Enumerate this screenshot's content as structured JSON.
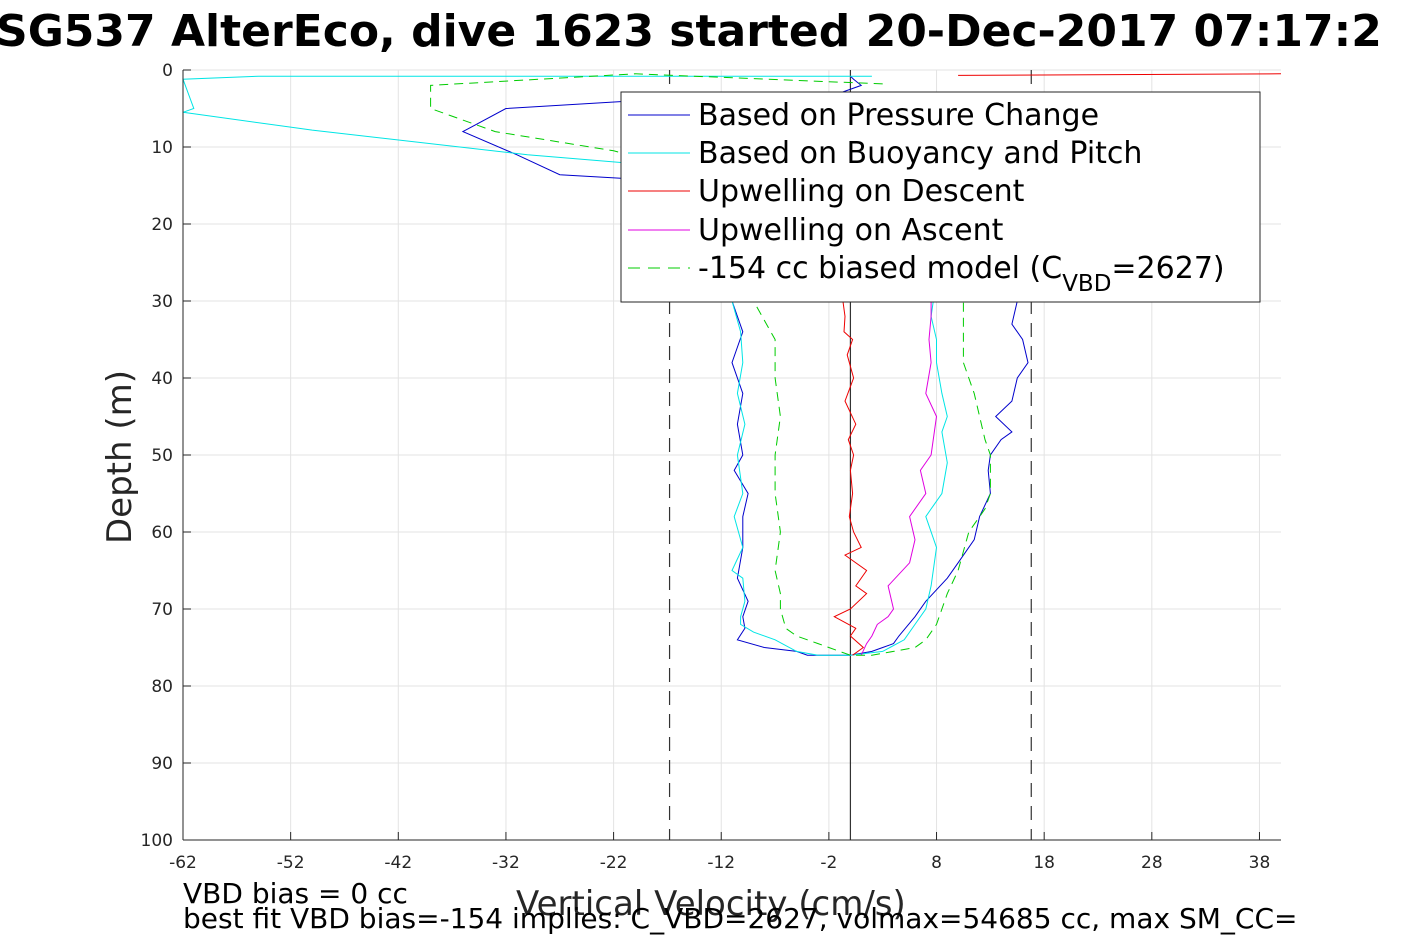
{
  "chart_data": {
    "type": "line",
    "title": "SG537 AlterEco, dive 1623 started 20-Dec-2017 07:17:2",
    "xlabel": "Vertical Velocity (cm/s)",
    "ylabel": "Depth (m)",
    "xlim": [
      -62,
      40
    ],
    "ylim": [
      0,
      100
    ],
    "y_reversed": true,
    "grid": true,
    "xticks": [
      -62,
      -52,
      -42,
      -32,
      -22,
      -12,
      -2,
      8,
      18,
      28,
      38
    ],
    "yticks": [
      0,
      10,
      20,
      30,
      40,
      50,
      60,
      70,
      80,
      90,
      100
    ],
    "legend_position": "top-right",
    "legend_labels": {
      "pressure": "Based on Pressure Change",
      "buoyancy": "Based on Buoyancy and Pitch",
      "up_desc": "Upwelling on Descent",
      "up_asc": "Upwelling on Ascent",
      "model_main": "-154 cc biased model (C",
      "model_sub": "VBD",
      "model_end": "=2627)"
    },
    "reference_lines": {
      "zero_velocity": 0,
      "dashed": [
        -16.8,
        16.8
      ]
    },
    "series": [
      {
        "key": "pressure",
        "color": "#0000cc",
        "dash": "",
        "x": [
          0,
          0.3,
          1,
          -1,
          -20,
          -32,
          -36,
          -31,
          -27,
          -16,
          -13,
          -11,
          -10,
          -11,
          -10,
          -10.5,
          -10,
          -10.8,
          -9.5,
          -10,
          -10,
          -10.5,
          -9.5,
          -10,
          -9.8,
          -10.5,
          -8,
          -5,
          -4,
          -2,
          0,
          2,
          3,
          4,
          4.5,
          6,
          7,
          9,
          10,
          11.5,
          12,
          13,
          12.8,
          13,
          14,
          15,
          13.5,
          15,
          15.5,
          16.5,
          16,
          15,
          15.5,
          14.5,
          15,
          14.5
        ],
        "y": [
          0.8,
          1.2,
          2,
          3,
          4,
          5,
          8,
          11,
          13.6,
          14.5,
          25,
          30,
          34,
          38,
          42,
          46,
          50,
          52,
          55,
          58,
          62,
          66,
          69,
          71,
          72.5,
          74,
          75,
          75.5,
          76,
          76,
          76,
          75.5,
          75,
          74.5,
          73.5,
          71,
          69,
          66,
          64,
          61,
          58,
          55,
          52,
          50,
          48,
          47,
          45,
          43,
          40,
          38,
          35,
          33,
          30,
          25,
          20,
          15
        ]
      },
      {
        "key": "buoyancy",
        "color": "#00e5e5",
        "dash": "",
        "x": [
          2,
          -55,
          -62,
          -61,
          -62,
          -50,
          -30,
          -17,
          -13,
          -11,
          -10.2,
          -10,
          -10.5,
          -9.8,
          -10.5,
          -10,
          -10.8,
          -10,
          -11,
          -10,
          -9.8,
          -10.2,
          -10.2,
          -9,
          -7,
          -5,
          -3,
          0,
          3,
          5,
          6,
          7,
          7.5,
          8,
          7,
          7.5,
          8.5,
          9,
          8.5,
          9,
          8.5,
          8,
          8,
          7.5,
          7.8,
          8,
          8.1,
          8
        ],
        "y": [
          0.8,
          0.8,
          1.2,
          5,
          5.5,
          7.8,
          11,
          12.5,
          25,
          30,
          34,
          38,
          42,
          46,
          50,
          55,
          58,
          62,
          65,
          66,
          69,
          71,
          72,
          73,
          74,
          75.5,
          76,
          76,
          75.5,
          74,
          72,
          70,
          67,
          62,
          58,
          57,
          55,
          51,
          47,
          45,
          42,
          38,
          35,
          32,
          29,
          25,
          20,
          15
        ]
      },
      {
        "key": "up_desc",
        "color": "#ee0000",
        "dash": "",
        "x": [
          -0.8,
          -0.7,
          -0.5,
          -0.6,
          0.2,
          -0.3,
          0.3,
          -0.5,
          0.5,
          -0.2,
          0.3,
          0,
          0.2,
          -0.1,
          0.3,
          1,
          -0.5,
          1.5,
          0.5,
          1.5,
          0,
          -1.5,
          0.5,
          0,
          1.2,
          0.2
        ],
        "y": [
          28,
          30,
          32,
          34,
          35,
          37,
          40,
          43,
          46,
          48,
          50,
          52,
          55,
          58,
          60,
          62,
          63,
          65,
          67,
          68,
          70,
          71,
          72.5,
          73.5,
          75,
          76
        ]
      },
      {
        "key": "up_desc_top",
        "color": "#ee0000",
        "dash": "",
        "x": [
          10,
          40
        ],
        "y": [
          0.7,
          0.5
        ]
      },
      {
        "key": "up_asc",
        "color": "#e000e0",
        "dash": "",
        "x": [
          1,
          1.5,
          2,
          2.5,
          3.5,
          4,
          3.5,
          5.5,
          6,
          5.5,
          7,
          6.5,
          7.5,
          8,
          7,
          7.5,
          7.3,
          7.5,
          7.5
        ],
        "y": [
          76,
          74.5,
          73.5,
          72,
          71,
          70,
          67,
          64,
          61,
          58,
          55,
          52,
          50,
          45,
          42,
          38,
          35,
          32,
          30
        ]
      },
      {
        "key": "model",
        "color": "#00cc00",
        "dash": "9,6",
        "x": [
          3,
          -20,
          -39,
          -39,
          -33,
          -22,
          -18,
          -12,
          -9,
          -7,
          -7,
          -6.5,
          -7,
          -7,
          -6.5,
          -7,
          -6.5,
          -6.5,
          -6,
          -5,
          -3,
          -1,
          0,
          2,
          4,
          6,
          7,
          8,
          8.5,
          9,
          10,
          11,
          12.5,
          13,
          13,
          12.5,
          12,
          11.5,
          11,
          10.5,
          10.5,
          10.5
        ],
        "y": [
          1.8,
          0.5,
          2,
          5,
          8,
          10.5,
          12,
          25,
          30,
          35,
          40,
          45,
          50,
          55,
          60,
          65,
          68,
          70,
          72.5,
          73.5,
          74.5,
          75.5,
          76,
          76,
          75.5,
          75,
          74,
          72,
          70,
          68,
          65,
          60,
          57,
          55,
          50,
          48,
          45,
          42,
          40,
          38,
          35,
          30
        ]
      }
    ],
    "notes": [
      "VBD bias = 0 cc",
      "best fit VBD bias=-154 implies: C_VBD=2627, volmax=54685 cc, max SM_CC="
    ]
  }
}
